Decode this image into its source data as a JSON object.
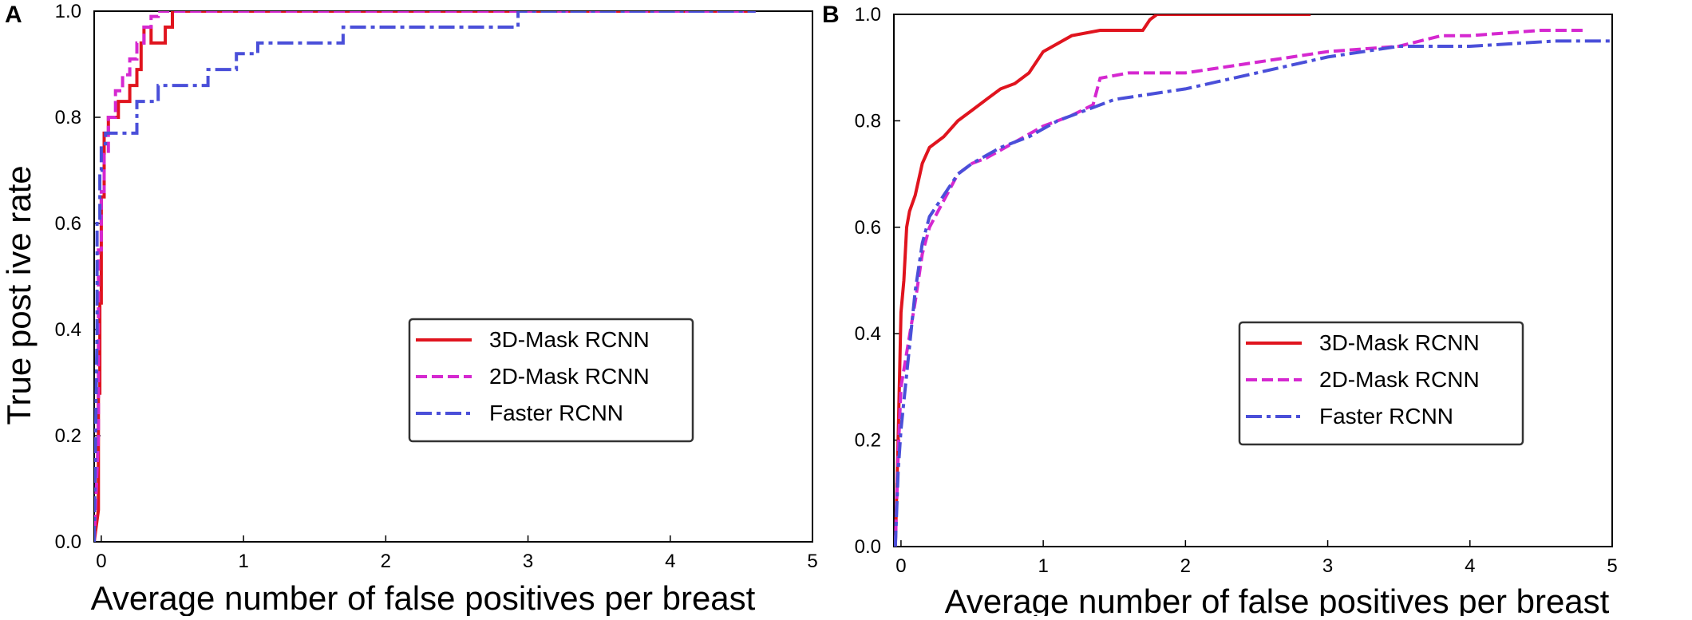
{
  "chart_data": [
    {
      "panel_label": "A",
      "type": "line",
      "xlabel": "Average number of false positives per breast",
      "ylabel": "True post ive rate",
      "xlim": [
        -0.05,
        5.0
      ],
      "ylim": [
        0.0,
        1.0
      ],
      "xticks": [
        "0",
        "1",
        "2",
        "3",
        "4",
        "5"
      ],
      "yticks": [
        "0.0",
        "0.2",
        "0.4",
        "0.6",
        "0.8",
        "1.0"
      ],
      "grid": false,
      "legend_position": "center-right",
      "series": [
        {
          "name": "3D-Mask RCNN",
          "color": "#e0141e",
          "style": "solid",
          "x": [
            -0.05,
            -0.02,
            -0.02,
            -0.01,
            -0.01,
            0.0,
            0.0,
            0.02,
            0.02,
            0.05,
            0.05,
            0.12,
            0.12,
            0.2,
            0.2,
            0.25,
            0.25,
            0.28,
            0.28,
            0.3,
            0.3,
            0.35,
            0.35,
            0.45,
            0.45,
            0.5,
            0.5,
            4.6
          ],
          "y": [
            0.0,
            0.06,
            0.28,
            0.28,
            0.45,
            0.45,
            0.65,
            0.65,
            0.77,
            0.77,
            0.8,
            0.8,
            0.83,
            0.83,
            0.86,
            0.86,
            0.89,
            0.89,
            0.94,
            0.94,
            0.97,
            0.97,
            0.94,
            0.94,
            0.97,
            0.97,
            1.0,
            1.0
          ]
        },
        {
          "name": "2D-Mask RCNN",
          "color": "#d528d0",
          "style": "dashed",
          "x": [
            -0.05,
            -0.02,
            -0.02,
            0.0,
            0.0,
            0.02,
            0.02,
            0.05,
            0.05,
            0.1,
            0.1,
            0.15,
            0.15,
            0.2,
            0.2,
            0.25,
            0.25,
            0.3,
            0.3,
            0.35,
            0.35,
            0.4,
            0.4,
            4.6
          ],
          "y": [
            0.0,
            0.2,
            0.55,
            0.55,
            0.66,
            0.66,
            0.73,
            0.73,
            0.8,
            0.8,
            0.85,
            0.85,
            0.88,
            0.88,
            0.91,
            0.91,
            0.94,
            0.94,
            0.97,
            0.97,
            0.99,
            0.99,
            1.0,
            1.0
          ]
        },
        {
          "name": "Faster RCNN",
          "color": "#4a4fd9",
          "style": "dashdot",
          "x": [
            -0.05,
            -0.03,
            -0.03,
            -0.01,
            -0.01,
            0.0,
            0.0,
            0.03,
            0.03,
            0.25,
            0.25,
            0.4,
            0.4,
            0.6,
            0.6,
            0.75,
            0.75,
            0.95,
            0.95,
            1.1,
            1.1,
            1.4,
            1.4,
            1.7,
            1.7,
            2.93,
            2.93,
            4.6
          ],
          "y": [
            0.0,
            0.4,
            0.6,
            0.6,
            0.7,
            0.7,
            0.75,
            0.75,
            0.77,
            0.77,
            0.83,
            0.83,
            0.86,
            0.86,
            0.86,
            0.86,
            0.89,
            0.89,
            0.92,
            0.92,
            0.94,
            0.94,
            0.94,
            0.94,
            0.97,
            0.97,
            1.0,
            1.0
          ]
        }
      ]
    },
    {
      "panel_label": "B",
      "type": "line",
      "xlabel": "Average number of false positives per breast",
      "ylabel": "",
      "xlim": [
        -0.05,
        5.0
      ],
      "ylim": [
        0.0,
        1.0
      ],
      "xticks": [
        "0",
        "1",
        "2",
        "3",
        "4",
        "5"
      ],
      "yticks": [
        "0.0",
        "0.2",
        "0.4",
        "0.6",
        "0.8",
        "1.0"
      ],
      "grid": false,
      "legend_position": "center-right",
      "series": [
        {
          "name": "3D-Mask RCNN",
          "color": "#e0141e",
          "style": "solid",
          "x": [
            -0.04,
            -0.02,
            0.0,
            0.02,
            0.04,
            0.06,
            0.1,
            0.15,
            0.2,
            0.3,
            0.4,
            0.5,
            0.6,
            0.7,
            0.8,
            0.9,
            1.0,
            1.2,
            1.4,
            1.6,
            1.7,
            1.75,
            1.8,
            2.0,
            2.5,
            2.88
          ],
          "y": [
            0.0,
            0.2,
            0.44,
            0.5,
            0.6,
            0.63,
            0.66,
            0.72,
            0.75,
            0.77,
            0.8,
            0.82,
            0.84,
            0.86,
            0.87,
            0.89,
            0.93,
            0.96,
            0.97,
            0.97,
            0.97,
            0.99,
            1.0,
            1.0,
            1.0,
            1.0
          ]
        },
        {
          "name": "2D-Mask RCNN",
          "color": "#d528d0",
          "style": "dashed",
          "x": [
            -0.04,
            -0.02,
            0.0,
            0.05,
            0.1,
            0.15,
            0.2,
            0.3,
            0.4,
            0.5,
            0.6,
            0.8,
            1.0,
            1.2,
            1.35,
            1.4,
            1.6,
            2.0,
            2.5,
            3.0,
            3.5,
            3.8,
            4.0,
            4.5,
            4.8
          ],
          "y": [
            0.0,
            0.17,
            0.3,
            0.38,
            0.46,
            0.55,
            0.6,
            0.65,
            0.7,
            0.72,
            0.73,
            0.76,
            0.79,
            0.81,
            0.83,
            0.88,
            0.89,
            0.89,
            0.91,
            0.93,
            0.94,
            0.96,
            0.96,
            0.97,
            0.97
          ]
        },
        {
          "name": "Faster RCNN",
          "color": "#4a4fd9",
          "style": "dashdot",
          "x": [
            -0.04,
            -0.02,
            0.0,
            0.05,
            0.1,
            0.15,
            0.2,
            0.3,
            0.4,
            0.5,
            0.7,
            0.9,
            1.1,
            1.3,
            1.5,
            2.0,
            2.5,
            3.0,
            3.5,
            4.0,
            4.6,
            5.0
          ],
          "y": [
            0.0,
            0.14,
            0.22,
            0.35,
            0.48,
            0.57,
            0.62,
            0.66,
            0.7,
            0.72,
            0.75,
            0.77,
            0.8,
            0.82,
            0.84,
            0.86,
            0.89,
            0.92,
            0.94,
            0.94,
            0.95,
            0.95
          ]
        }
      ]
    }
  ]
}
